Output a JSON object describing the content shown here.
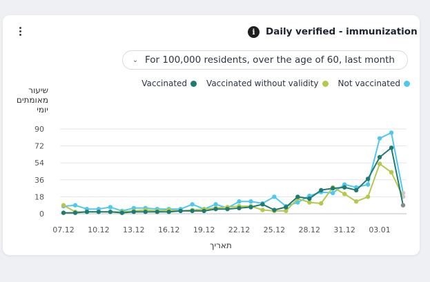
{
  "header": {
    "title": "Daily verified - immunization",
    "info_icon": "info-icon",
    "menu_icon": "kebab-menu-icon"
  },
  "filter": {
    "selected": "For 100,000 residents, over the age of 60, last month",
    "icon": "chevron-down-icon"
  },
  "chart_data": {
    "type": "line",
    "ylabel": "שיעור מאומתים יומי",
    "xlabel": "תאריך",
    "ylim": [
      0,
      90
    ],
    "yticks": [
      0,
      18,
      36,
      54,
      72,
      90
    ],
    "x_tick_labels": [
      "07.12",
      "10.12",
      "13.12",
      "16.12",
      "19.12",
      "22.12",
      "25.12",
      "28.12",
      "31.12",
      "03.01"
    ],
    "x_tick_index": [
      0,
      3,
      6,
      9,
      12,
      15,
      18,
      21,
      24,
      27
    ],
    "grid": true,
    "legend_position": "top-right",
    "x": [
      "07.12",
      "08.12",
      "09.12",
      "10.12",
      "11.12",
      "12.12",
      "13.12",
      "14.12",
      "15.12",
      "16.12",
      "17.12",
      "18.12",
      "19.12",
      "20.12",
      "21.12",
      "22.12",
      "23.12",
      "24.12",
      "25.12",
      "26.12",
      "27.12",
      "28.12",
      "29.12",
      "30.12",
      "31.12",
      "01.01",
      "02.01",
      "03.01",
      "04.01",
      "05.01"
    ],
    "series": [
      {
        "name": "Vaccinated",
        "color": "#1f7a70",
        "values": [
          1,
          1,
          2,
          2,
          2,
          1,
          2,
          2,
          2,
          2,
          3,
          3,
          3,
          5,
          5,
          6,
          7,
          10,
          4,
          7,
          18,
          16,
          25,
          27,
          28,
          25,
          37,
          60,
          70,
          9
        ]
      },
      {
        "name": "Vaccinated without validity",
        "color": "#b5c84a",
        "values": [
          9,
          2,
          2,
          2,
          2,
          2,
          3,
          4,
          3,
          4,
          3,
          4,
          5,
          6,
          7,
          8,
          8,
          4,
          3,
          3,
          16,
          12,
          11,
          28,
          21,
          13,
          18,
          53,
          44,
          18
        ]
      },
      {
        "name": "Not vaccinated",
        "color": "#4ec8ee",
        "values": [
          8,
          9,
          5,
          5,
          7,
          3,
          6,
          6,
          5,
          5,
          5,
          10,
          5,
          10,
          6,
          13,
          13,
          11,
          18,
          8,
          12,
          19,
          23,
          22,
          31,
          28,
          31,
          80,
          86,
          22
        ]
      }
    ]
  }
}
